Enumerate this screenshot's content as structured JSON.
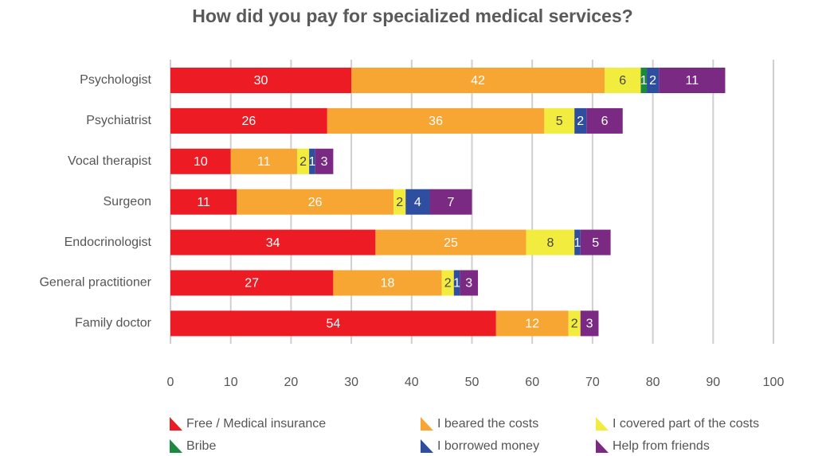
{
  "chart_data": {
    "type": "stacked-bar-horizontal",
    "title": "How did you pay for specialized medical services?",
    "categories": [
      "Psychologist",
      "Psychiatrist",
      "Vocal therapist",
      "Surgeon",
      "Endocrinologist",
      "General practitioner",
      "Family doctor"
    ],
    "series": [
      {
        "name": "Free / Medical insurance",
        "color": "#ed1c24",
        "values": [
          30,
          26,
          10,
          11,
          34,
          27,
          54
        ]
      },
      {
        "name": "I beared the costs",
        "color": "#f7a533",
        "values": [
          42,
          36,
          11,
          26,
          25,
          18,
          12
        ]
      },
      {
        "name": "I covered part of the costs",
        "color": "#f2ec3f",
        "values": [
          6,
          5,
          2,
          2,
          8,
          2,
          2
        ]
      },
      {
        "name": "Bribe",
        "color": "#1b8a3e",
        "values": [
          1,
          null,
          null,
          null,
          null,
          null,
          null
        ]
      },
      {
        "name": "I borrowed money",
        "color": "#2e4fa0",
        "values": [
          2,
          2,
          1,
          4,
          1,
          1,
          null
        ]
      },
      {
        "name": "Help from friends",
        "color": "#7b2a84",
        "values": [
          11,
          6,
          3,
          7,
          5,
          3,
          3
        ]
      }
    ],
    "xlim": [
      0,
      100
    ],
    "xticks": [
      0,
      10,
      20,
      30,
      40,
      50,
      60,
      70,
      80,
      90,
      100
    ],
    "grid": true
  }
}
